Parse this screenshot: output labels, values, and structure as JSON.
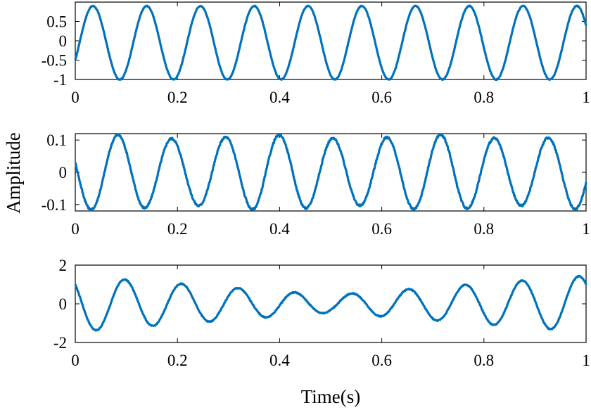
{
  "figure": {
    "ylabel": "Amplitude",
    "xlabel": "Time(s)",
    "line_color": "#0072BD"
  },
  "chart_data": [
    {
      "type": "line",
      "title": "",
      "xlabel": "",
      "ylabel": "",
      "xlim": [
        0,
        1
      ],
      "ylim": [
        -1,
        1
      ],
      "xticks": [
        0,
        0.2,
        0.4,
        0.6,
        0.8,
        1
      ],
      "xtick_labels": [
        "0",
        "0.2",
        "0.4",
        "0.6",
        "0.8",
        "1"
      ],
      "yticks": [
        0.5,
        0,
        -0.5,
        -1
      ],
      "ytick_labels": [
        "0.5",
        "0",
        "-0.5",
        "-1"
      ],
      "grid": false,
      "series": [
        {
          "frequency_hz": 9.5,
          "amplitude": 0.95,
          "offset": -0.05,
          "start_value": -0.5
        }
      ]
    },
    {
      "type": "line",
      "title": "",
      "xlabel": "",
      "ylabel": "",
      "xlim": [
        0,
        1
      ],
      "ylim": [
        -0.12,
        0.12
      ],
      "xticks": [
        0,
        0.2,
        0.4,
        0.6,
        0.8,
        1
      ],
      "xtick_labels": [
        "0",
        "0.2",
        "0.4",
        "0.6",
        "0.8",
        "1"
      ],
      "yticks": [
        0.1,
        0,
        -0.1
      ],
      "ytick_labels": [
        "0.1",
        "0",
        "-0.1"
      ],
      "grid": false,
      "series": [
        {
          "frequency_hz": 9.5,
          "amplitude": 0.11,
          "start_value": 0.03
        }
      ]
    },
    {
      "type": "line",
      "title": "",
      "xlabel": "",
      "ylabel": "",
      "xlim": [
        0,
        1
      ],
      "ylim": [
        -2,
        2
      ],
      "xticks": [
        0,
        0.2,
        0.4,
        0.6,
        0.8,
        1
      ],
      "xtick_labels": [
        "0",
        "0.2",
        "0.4",
        "0.6",
        "0.8",
        "1"
      ],
      "yticks": [
        2,
        0,
        -2
      ],
      "ytick_labels": [
        "2",
        "0",
        "-2"
      ],
      "grid": false,
      "series": [
        {
          "frequency_hz": 9.0,
          "envelope_max": 1.45,
          "envelope_min": 0.45,
          "envelope_min_at": 0.5,
          "start_value": 1.0
        }
      ]
    }
  ]
}
